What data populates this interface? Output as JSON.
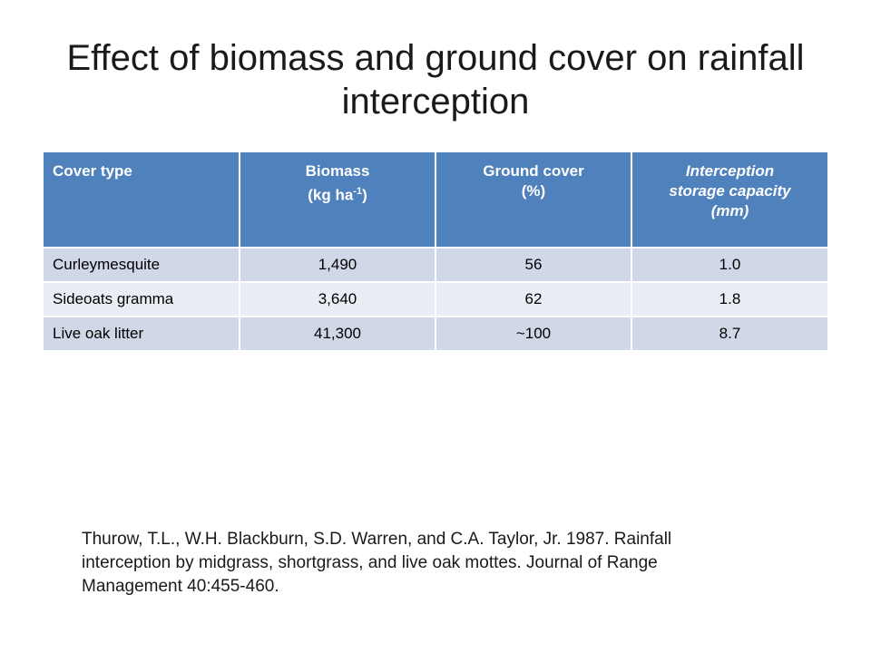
{
  "slide": {
    "title_line1": "Effect of biomass and ground cover on rainfall",
    "title_line2": "interception"
  },
  "table": {
    "headers": [
      {
        "line1": "Cover type"
      },
      {
        "line1": "Biomass",
        "line2_pre": "(kg ha",
        "line2_sup": "-1",
        "line2_post": ")"
      },
      {
        "line1": "Ground cover",
        "line2": "(%)"
      },
      {
        "line1": "Interception",
        "line2": "storage capacity",
        "line3": "(mm)"
      }
    ],
    "rows": [
      {
        "cover": "Curleymesquite",
        "biomass": "1,490",
        "ground": "56",
        "capacity": "1.0"
      },
      {
        "cover": "Sideoats gramma",
        "biomass": "3,640",
        "ground": "62",
        "capacity": "1.8"
      },
      {
        "cover": "Live oak litter",
        "biomass": "41,300",
        "ground": "~100",
        "capacity": "8.7"
      }
    ]
  },
  "citation": {
    "line1": "Thurow, T.L., W.H. Blackburn, S.D. Warren, and C.A. Taylor, Jr. 1987. Rainfall",
    "line2": "interception by midgrass, shortgrass, and live oak mottes. Journal of Range",
    "line3": "Management 40:455-460."
  },
  "colors": {
    "header_bg": "#4f81bd",
    "row_odd_bg": "#d0d8e8",
    "row_even_bg": "#e9edf4"
  }
}
